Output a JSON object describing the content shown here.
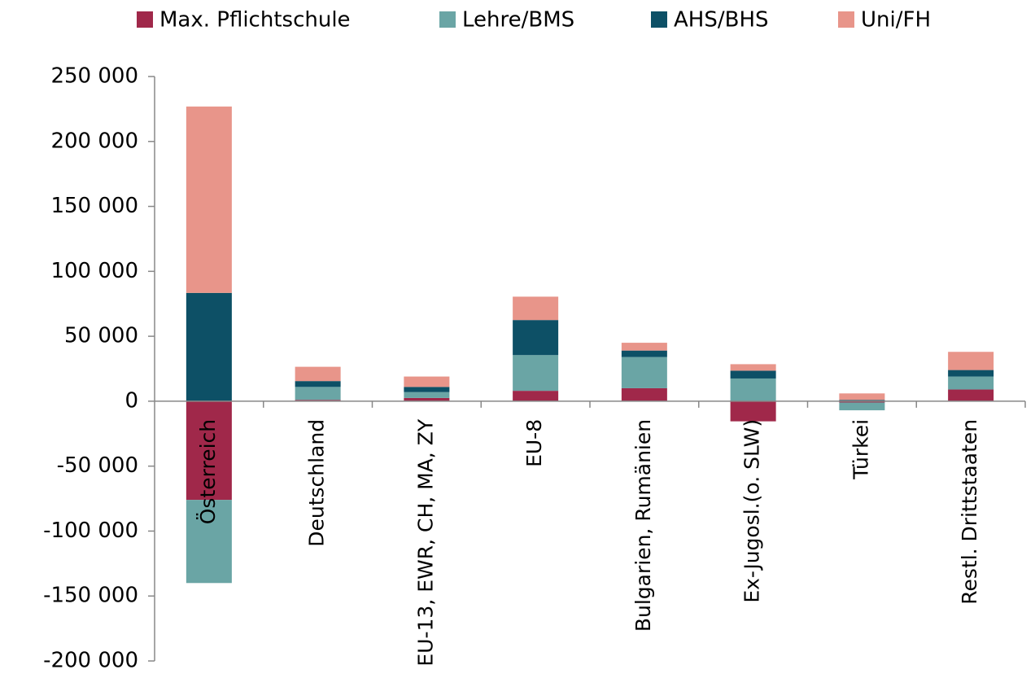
{
  "chart_data": {
    "type": "stacked_bar",
    "categories": [
      "Österreich",
      "Deutschland",
      "EU-13, EWR, CH, MA, ZY",
      "EU-8",
      "Bulgarien, Rumänien",
      "Ex-Jugosl.(o. SLW)",
      "Türkei",
      "Restl. Drittstaaten"
    ],
    "series": [
      {
        "name": "Max. Pflichtschule",
        "color": "#a0284a",
        "values": [
          -76000,
          1000,
          2500,
          8000,
          10000,
          -15500,
          -1000,
          9000
        ]
      },
      {
        "name": "Lehre/BMS",
        "color": "#6aa5a5",
        "values": [
          -64000,
          10000,
          4500,
          27500,
          24000,
          17500,
          -6000,
          10000
        ]
      },
      {
        "name": "AHS/BHS",
        "color": "#0d5066",
        "values": [
          83400,
          4500,
          4000,
          27000,
          5000,
          6000,
          1000,
          5000
        ]
      },
      {
        "name": "Uni/FH",
        "color": "#e8958a",
        "values": [
          143500,
          11000,
          8000,
          18000,
          6000,
          5000,
          5000,
          14000
        ]
      }
    ],
    "ylim": [
      -200000,
      250000
    ],
    "yticks": [
      {
        "value": -200000,
        "label": "-200 000"
      },
      {
        "value": -150000,
        "label": "-150 000"
      },
      {
        "value": -100000,
        "label": "-100 000"
      },
      {
        "value": -50000,
        "label": "-50 000"
      },
      0,
      {
        "value": 50000,
        "label": "50 000"
      },
      {
        "value": 100000,
        "label": "100 000"
      },
      {
        "value": 150000,
        "label": "150 000"
      },
      {
        "value": 200000,
        "label": "200 000"
      },
      {
        "value": 250000,
        "label": "250 000"
      }
    ],
    "legend": "top"
  }
}
